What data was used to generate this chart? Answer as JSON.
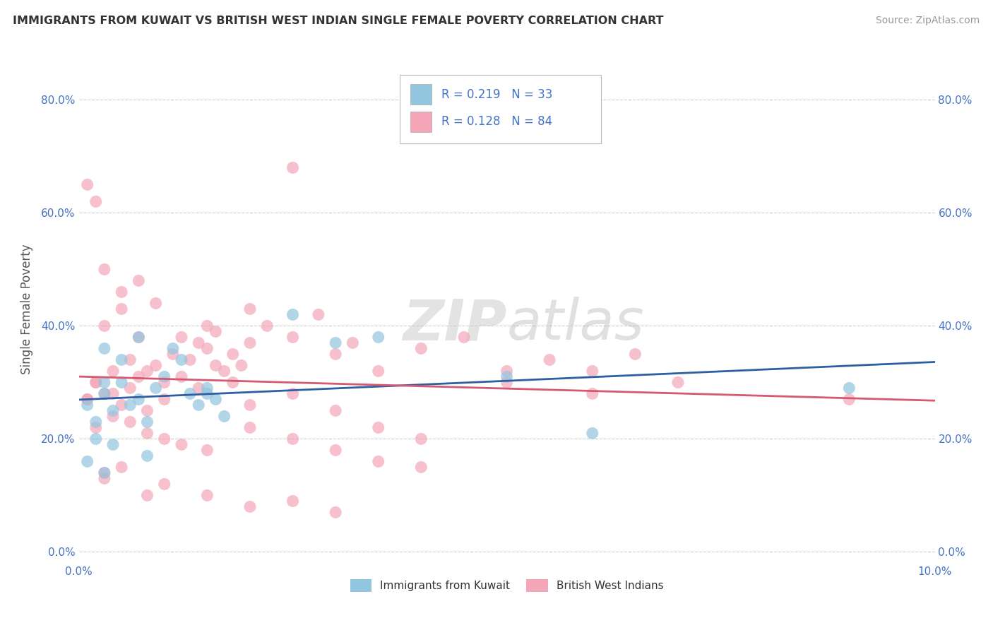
{
  "title": "IMMIGRANTS FROM KUWAIT VS BRITISH WEST INDIAN SINGLE FEMALE POVERTY CORRELATION CHART",
  "source": "Source: ZipAtlas.com",
  "ylabel": "Single Female Poverty",
  "xlim": [
    0.0,
    0.1
  ],
  "ylim": [
    -0.02,
    0.88
  ],
  "yticks": [
    0.0,
    0.2,
    0.4,
    0.6,
    0.8
  ],
  "xticks": [
    0.0,
    0.1
  ],
  "watermark_zip": "ZIP",
  "watermark_atlas": "atlas",
  "legend_r1": "R = 0.219",
  "legend_n1": "N = 33",
  "legend_r2": "R = 0.128",
  "legend_n2": "N = 84",
  "color_blue": "#92C5DE",
  "color_pink": "#F4A6B8",
  "color_blue_line": "#2E5FA3",
  "color_pink_line": "#D45A72",
  "color_text_blue": "#4472C4",
  "color_text_pink": "#4472C4",
  "color_N_blue": "#E05020",
  "color_N_pink": "#E05020",
  "blue_x": [
    0.001,
    0.002,
    0.003,
    0.004,
    0.005,
    0.006,
    0.007,
    0.008,
    0.009,
    0.01,
    0.011,
    0.012,
    0.013,
    0.014,
    0.015,
    0.016,
    0.017,
    0.002,
    0.004,
    0.008,
    0.09,
    0.001,
    0.003,
    0.025,
    0.03,
    0.035,
    0.05,
    0.06,
    0.003,
    0.007,
    0.003,
    0.005,
    0.015
  ],
  "blue_y": [
    0.26,
    0.23,
    0.28,
    0.25,
    0.3,
    0.26,
    0.27,
    0.23,
    0.29,
    0.31,
    0.36,
    0.34,
    0.28,
    0.26,
    0.29,
    0.27,
    0.24,
    0.2,
    0.19,
    0.17,
    0.29,
    0.16,
    0.14,
    0.42,
    0.37,
    0.38,
    0.31,
    0.21,
    0.36,
    0.38,
    0.3,
    0.34,
    0.28
  ],
  "pink_x": [
    0.001,
    0.002,
    0.003,
    0.004,
    0.005,
    0.006,
    0.007,
    0.008,
    0.009,
    0.01,
    0.011,
    0.012,
    0.013,
    0.014,
    0.015,
    0.016,
    0.017,
    0.018,
    0.019,
    0.02,
    0.022,
    0.025,
    0.028,
    0.03,
    0.032,
    0.035,
    0.04,
    0.045,
    0.05,
    0.055,
    0.06,
    0.065,
    0.003,
    0.005,
    0.007,
    0.009,
    0.002,
    0.004,
    0.006,
    0.008,
    0.01,
    0.012,
    0.015,
    0.02,
    0.025,
    0.03,
    0.035,
    0.04,
    0.015,
    0.02,
    0.003,
    0.005,
    0.04,
    0.035,
    0.03,
    0.025,
    0.02,
    0.018,
    0.016,
    0.014,
    0.012,
    0.01,
    0.008,
    0.006,
    0.004,
    0.002,
    0.001,
    0.05,
    0.06,
    0.07,
    0.002,
    0.003,
    0.025,
    0.003,
    0.008,
    0.01,
    0.015,
    0.02,
    0.025,
    0.03,
    0.005,
    0.001,
    0.007,
    0.09
  ],
  "pink_y": [
    0.27,
    0.3,
    0.28,
    0.32,
    0.26,
    0.29,
    0.31,
    0.25,
    0.33,
    0.3,
    0.35,
    0.38,
    0.34,
    0.37,
    0.36,
    0.39,
    0.32,
    0.35,
    0.33,
    0.37,
    0.4,
    0.38,
    0.42,
    0.35,
    0.37,
    0.32,
    0.36,
    0.38,
    0.3,
    0.34,
    0.32,
    0.35,
    0.5,
    0.46,
    0.48,
    0.44,
    0.22,
    0.24,
    0.23,
    0.21,
    0.2,
    0.19,
    0.18,
    0.22,
    0.2,
    0.18,
    0.16,
    0.15,
    0.4,
    0.43,
    0.4,
    0.43,
    0.2,
    0.22,
    0.25,
    0.28,
    0.26,
    0.3,
    0.33,
    0.29,
    0.31,
    0.27,
    0.32,
    0.34,
    0.28,
    0.3,
    0.27,
    0.32,
    0.28,
    0.3,
    0.62,
    0.13,
    0.68,
    0.14,
    0.1,
    0.12,
    0.1,
    0.08,
    0.09,
    0.07,
    0.15,
    0.65,
    0.38,
    0.27
  ]
}
